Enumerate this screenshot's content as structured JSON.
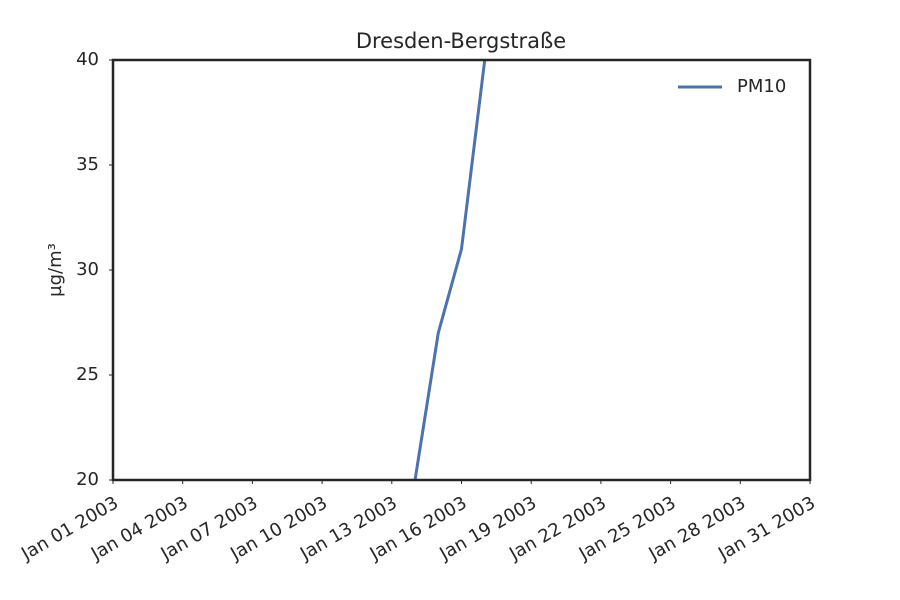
{
  "chart_data": {
    "type": "line",
    "title": "Dresden-Bergstraße",
    "y_label": "µg/m³",
    "x": [
      "2003-01-14",
      "2003-01-15",
      "2003-01-16",
      "2003-01-17"
    ],
    "series": [
      {
        "name": "PM10",
        "color": "#4c72b0",
        "values": [
          20,
          27,
          31,
          40
        ]
      }
    ],
    "xlim": [
      "2003-01-01",
      "2003-01-31"
    ],
    "xticks": [
      {
        "value": "2003-01-01",
        "label": "Jan 01 2003"
      },
      {
        "value": "2003-01-04",
        "label": "Jan 04 2003"
      },
      {
        "value": "2003-01-07",
        "label": "Jan 07 2003"
      },
      {
        "value": "2003-01-10",
        "label": "Jan 10 2003"
      },
      {
        "value": "2003-01-13",
        "label": "Jan 13 2003"
      },
      {
        "value": "2003-01-16",
        "label": "Jan 16 2003"
      },
      {
        "value": "2003-01-19",
        "label": "Jan 19 2003"
      },
      {
        "value": "2003-01-22",
        "label": "Jan 22 2003"
      },
      {
        "value": "2003-01-25",
        "label": "Jan 25 2003"
      },
      {
        "value": "2003-01-28",
        "label": "Jan 28 2003"
      },
      {
        "value": "2003-01-31",
        "label": "Jan 31 2003"
      }
    ],
    "ylim": [
      20,
      40
    ],
    "yticks": [
      20,
      25,
      30,
      35,
      40
    ],
    "grid": false,
    "legend": "upper right"
  }
}
